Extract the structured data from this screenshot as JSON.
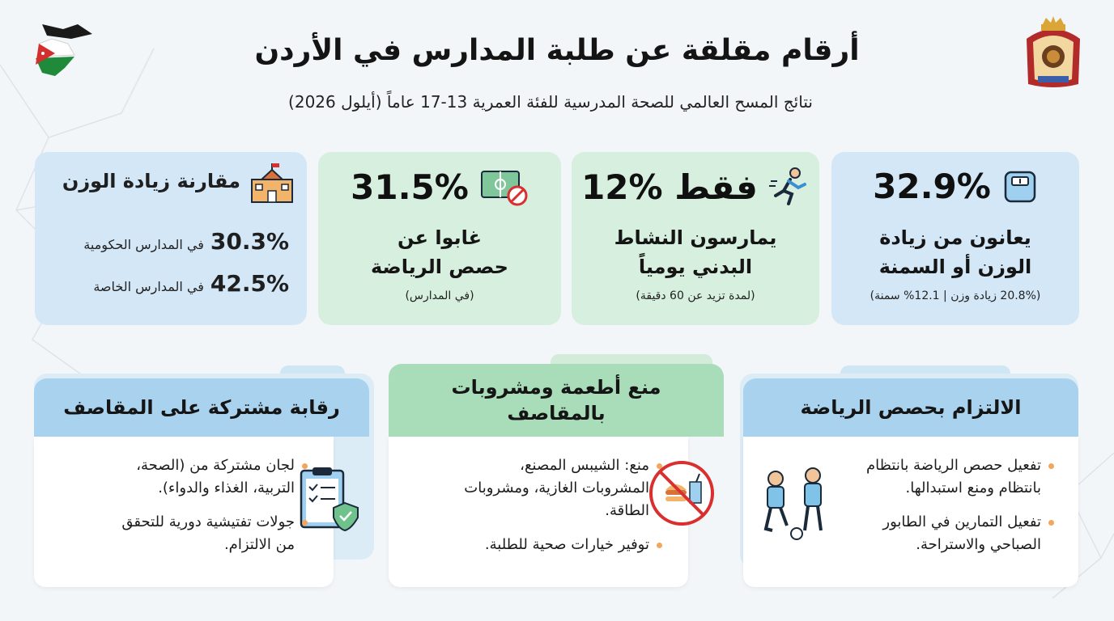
{
  "header": {
    "title": "أرقام مقلقة عن طلبة المدارس في الأردن",
    "subtitle": "نتائج المسح العالمي للصحة المدرسية للفئة العمرية 13-17 عاماً (أيلول 2026)"
  },
  "colors": {
    "blue_card": "#d3e7f7",
    "green_card": "#d7efde",
    "blue_header": "#a8d2ee",
    "green_header": "#a9dcb9",
    "bullet": "#f2a65a"
  },
  "cards": {
    "overweight": {
      "icon": "scale-icon",
      "value": "32.9%",
      "label": "يعانون من زيادة الوزن أو السمنة",
      "note": "(20.8% زيادة وزن | 12.1% سمنة)"
    },
    "activity": {
      "icon": "runner-icon",
      "value": "12% فقط",
      "label": "يمارسون النشاط البدني يومياً",
      "note": "(لمدة تزيد عن 60 دقيقة)"
    },
    "absent": {
      "icon": "no-sports-field-icon",
      "value": "31.5%",
      "label": "غابوا عن حصص الرياضة",
      "note": "(في المدارس)"
    },
    "comparison": {
      "icon": "school-building-icon",
      "title": "مقارنة زيادة الوزن",
      "rows": [
        {
          "value": "30.3%",
          "text": "في المدارس الحكومية"
        },
        {
          "value": "42.5%",
          "text": "في المدارس الخاصة"
        }
      ]
    }
  },
  "panels": {
    "sports": {
      "title": "الالتزام بحصص الرياضة",
      "icon": "kids-playing-football-icon",
      "bullets": [
        "تفعيل حصص الرياضة بانتظام بانتظام ومنع استبدالها.",
        "تفعيل التمارين في الطابور الصباحي والاستراحة."
      ]
    },
    "food": {
      "title": "منع أطعمة ومشروبات بالمقاصف",
      "icon": "no-junk-food-icon",
      "bullets": [
        "منع: الشيبس المصنع، المشروبات الغازية، ومشروبات الطاقة.",
        "توفير خيارات صحية للطلبة."
      ]
    },
    "monitor": {
      "title": "رقابة مشتركة على المقاصف",
      "icon": "checklist-shield-icon",
      "bullets": [
        "لجان مشتركة من (الصحة، التربية، الغذاء والدواء).",
        "جولات تفتيشية دورية للتحقق من الالتزام."
      ]
    }
  }
}
